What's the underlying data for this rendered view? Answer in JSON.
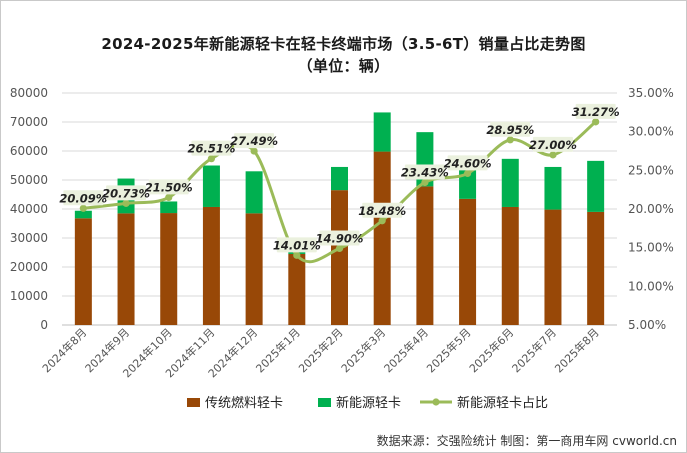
{
  "title_line1": "2024-2025年新能源轻卡在轻卡终端市场（3.5-6T）销量占比走势图",
  "title_line2": "（单位：辆）",
  "source": "数据来源：交强险统计 制图：第一商用车网 cvworld.cn",
  "colors": {
    "traditional": "#984807",
    "ne": "#00b050",
    "share_line": "#9bbb59",
    "label_bg": "#ebf1de"
  },
  "chart_data": {
    "type": "bar",
    "stacked": true,
    "categories": [
      "2024年8月",
      "2024年9月",
      "2024年10月",
      "2024年11月",
      "2024年12月",
      "2025年1月",
      "2025年2月",
      "2025年3月",
      "2025年4月",
      "2025年5月",
      "2025年6月",
      "2025年7月",
      "2025年8月"
    ],
    "series": [
      {
        "name": "传统燃料轻卡",
        "axis": "left",
        "values": [
          36800,
          38500,
          38600,
          40700,
          38500,
          24500,
          46500,
          59800,
          47800,
          43500,
          40700,
          39800,
          39000
        ]
      },
      {
        "name": "新能源轻卡",
        "axis": "left",
        "values": [
          2600,
          12000,
          4000,
          14300,
          14500,
          4000,
          8000,
          13500,
          18700,
          14200,
          16600,
          14700,
          17600
        ]
      },
      {
        "name": "新能源轻卡占比",
        "type": "line",
        "axis": "right",
        "values": [
          20.09,
          20.73,
          21.5,
          26.51,
          27.49,
          14.01,
          14.9,
          18.48,
          23.43,
          24.6,
          28.95,
          27.0,
          31.27
        ]
      }
    ],
    "data_labels": [
      "20.09%",
      "20.73%",
      "21.50%",
      "26.51%",
      "27.49%",
      "14.01%",
      "14.90%",
      "18.48%",
      "23.43%",
      "24.60%",
      "28.95%",
      "27.00%",
      "31.27%"
    ],
    "ylim": [
      0,
      80000
    ],
    "y_ticks": [
      "0",
      "10000",
      "20000",
      "30000",
      "40000",
      "50000",
      "60000",
      "70000",
      "80000"
    ],
    "y2lim": [
      5,
      35
    ],
    "y2_ticks": [
      "5.00%",
      "10.00%",
      "15.00%",
      "20.00%",
      "25.00%",
      "30.00%",
      "35.00%"
    ],
    "legend_position": "bottom",
    "grid": true
  }
}
